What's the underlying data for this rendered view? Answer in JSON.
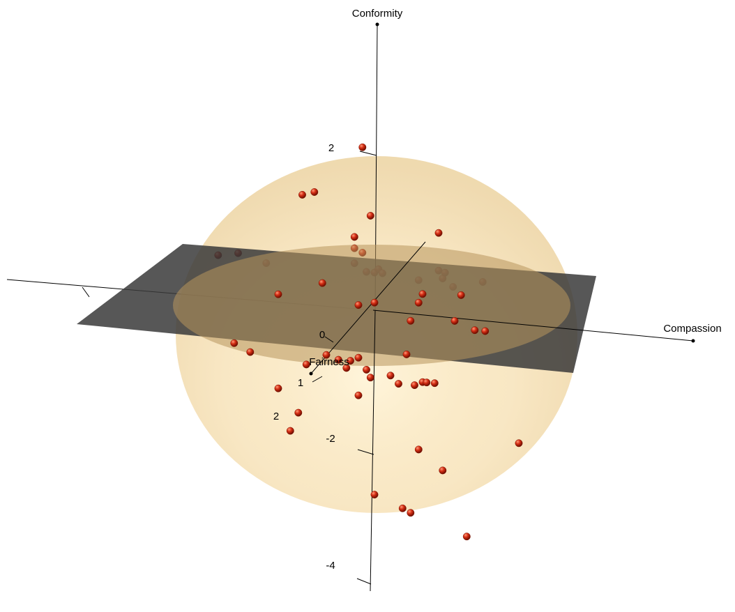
{
  "chart_data": {
    "type": "scatter",
    "projection": "3d",
    "title": "",
    "axes": {
      "x": {
        "label": "Compassion"
      },
      "y": {
        "label": "Fairness"
      },
      "z": {
        "label": "Conformity",
        "ticks": [
          "2",
          "-2",
          "-4"
        ]
      }
    },
    "fairness_ticks": [
      "0",
      "1",
      "2"
    ],
    "overlays": {
      "ellipsoid": {
        "color": "#f2d08c",
        "opacity": 0.55
      },
      "plane": {
        "color": "#3a3a3a",
        "opacity": 0.85
      }
    },
    "point_color": "#d42d14",
    "points": [
      [
        -0.15,
        0,
        2.15
      ],
      [
        -0.9,
        0,
        1.45
      ],
      [
        -0.75,
        0,
        1.5
      ],
      [
        -0.05,
        0,
        1.25
      ],
      [
        0.8,
        0,
        1.1
      ],
      [
        -0.25,
        0,
        0.95
      ],
      [
        -0.25,
        0,
        0.8
      ],
      [
        -0.15,
        0,
        0.75
      ],
      [
        -1.95,
        0,
        0.55
      ],
      [
        -1.7,
        0,
        0.6
      ],
      [
        -1.35,
        0,
        0.5
      ],
      [
        -0.25,
        0,
        0.6
      ],
      [
        -0.1,
        0,
        0.5
      ],
      [
        0.0,
        0,
        0.5
      ],
      [
        0.05,
        0,
        0.55
      ],
      [
        0.1,
        0,
        0.5
      ],
      [
        0.85,
        0,
        0.5
      ],
      [
        0.8,
        0,
        0.6
      ],
      [
        0.88,
        0,
        0.58
      ],
      [
        1.35,
        0,
        0.5
      ],
      [
        0.55,
        0,
        0.45
      ],
      [
        0.98,
        0,
        0.4
      ],
      [
        1.08,
        0,
        0.3
      ],
      [
        0.6,
        0,
        0.27
      ],
      [
        -0.65,
        0,
        0.3
      ],
      [
        0.55,
        0,
        0.15
      ],
      [
        -1.2,
        0,
        0.1
      ],
      [
        -0.2,
        0,
        0.05
      ],
      [
        0.0,
        0,
        0.1
      ],
      [
        1.0,
        0,
        -0.05
      ],
      [
        0.45,
        0,
        -0.1
      ],
      [
        1.25,
        0,
        -0.15
      ],
      [
        1.38,
        0,
        -0.15
      ],
      [
        -1.75,
        0,
        -0.6
      ],
      [
        -1.55,
        0,
        -0.7
      ],
      [
        -0.85,
        0,
        -0.8
      ],
      [
        -0.6,
        0,
        -0.65
      ],
      [
        -0.45,
        0,
        -0.7
      ],
      [
        -0.3,
        0,
        -0.7
      ],
      [
        -0.2,
        0,
        -0.65
      ],
      [
        -0.1,
        0,
        -0.8
      ],
      [
        0.2,
        0,
        -0.85
      ],
      [
        0.3,
        0,
        -0.95
      ],
      [
        0.5,
        0,
        -0.95
      ],
      [
        0.6,
        0,
        -0.9
      ],
      [
        0.65,
        0,
        -0.9
      ],
      [
        0.75,
        0,
        -0.9
      ],
      [
        0.4,
        0,
        -0.55
      ],
      [
        -0.35,
        0,
        -0.8
      ],
      [
        -0.05,
        0,
        -0.9
      ],
      [
        -0.2,
        0,
        -1.15
      ],
      [
        -1.2,
        0,
        -1.15
      ],
      [
        -0.95,
        0,
        -1.45
      ],
      [
        -1.05,
        0,
        -1.7
      ],
      [
        0.55,
        0,
        -1.8
      ],
      [
        0.85,
        0,
        -2.05
      ],
      [
        1.8,
        0,
        -1.6
      ],
      [
        0.0,
        0,
        -2.45
      ],
      [
        0.35,
        0,
        -2.6
      ],
      [
        0.45,
        0,
        -2.65
      ],
      [
        1.15,
        0,
        -2.9
      ]
    ]
  }
}
